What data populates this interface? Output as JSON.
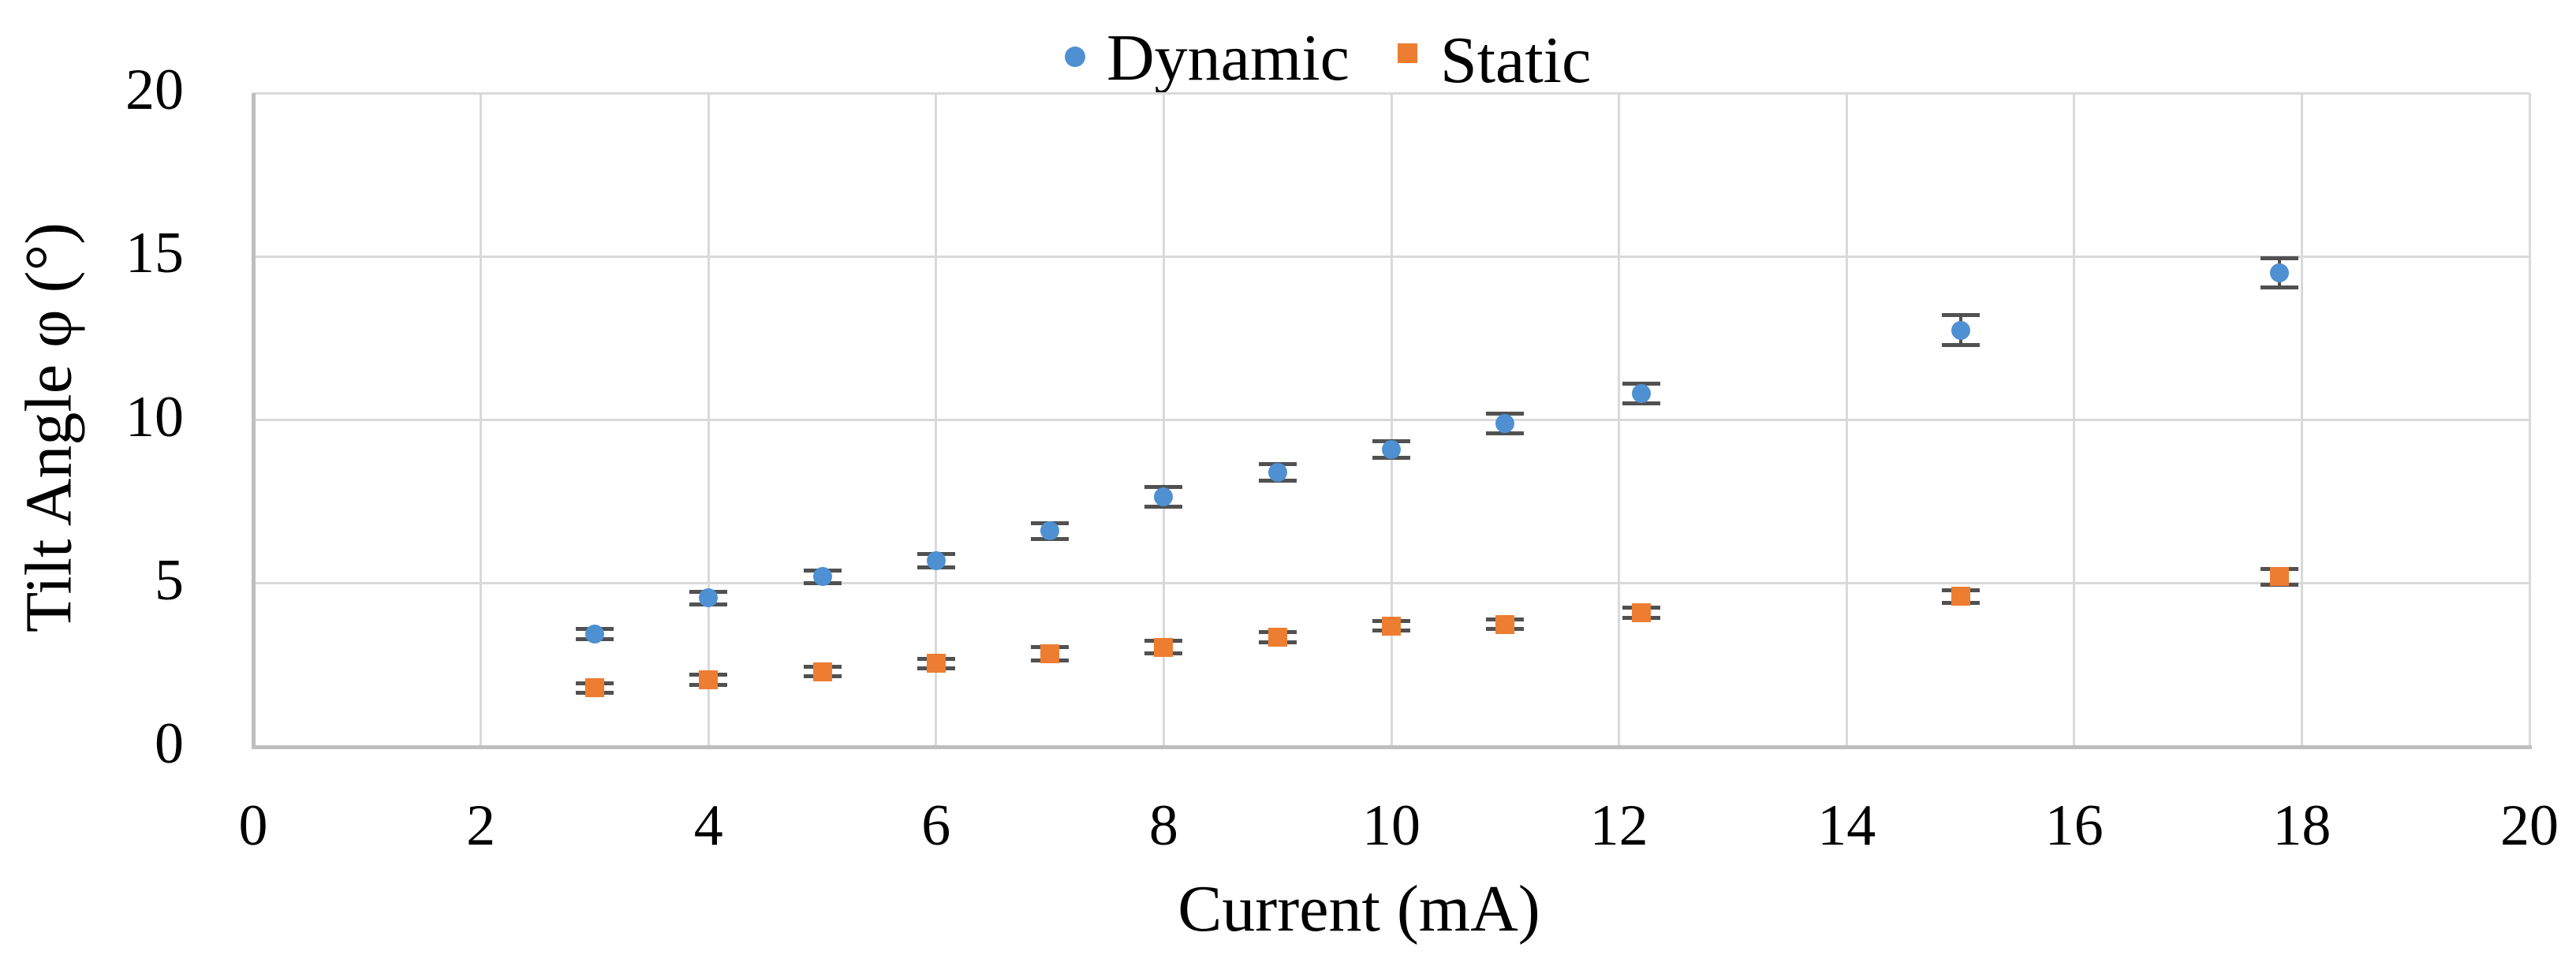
{
  "legend": [
    {
      "label": "Dynamic",
      "marker": "circle",
      "color": "#4E90D2"
    },
    {
      "label": "Static",
      "marker": "square",
      "color": "#ED7D31"
    }
  ],
  "axes": {
    "x": {
      "title": "Current (mA)",
      "min": 0,
      "max": 20
    },
    "y": {
      "title": "Tilt Angle φ (°)",
      "min": 0,
      "max": 20
    }
  },
  "colors": {
    "dynamic": "#4E90D2",
    "static": "#ED7D31",
    "error_bar": "#515151",
    "gridline": "#D9D9D9",
    "axis_line": "#BFBFBF",
    "text": "#000000"
  },
  "chart_data": {
    "type": "scatter",
    "title": "",
    "xlabel": "Current (mA)",
    "ylabel": "Tilt Angle φ (°)",
    "xlim": [
      0,
      20
    ],
    "ylim": [
      0,
      20
    ],
    "x_ticks": [
      0,
      2,
      4,
      6,
      8,
      10,
      12,
      14,
      16,
      18,
      20
    ],
    "y_ticks": [
      0,
      5,
      10,
      15,
      20
    ],
    "grid": true,
    "error_bars": true,
    "legend_position": "top-center",
    "series": [
      {
        "name": "Dynamic",
        "marker": "circle",
        "color": "#4E90D2",
        "points": [
          {
            "x": 3,
            "y": 3.45,
            "err": 0.15
          },
          {
            "x": 4,
            "y": 4.55,
            "err": 0.2
          },
          {
            "x": 5,
            "y": 5.2,
            "err": 0.2
          },
          {
            "x": 6,
            "y": 5.7,
            "err": 0.2
          },
          {
            "x": 7,
            "y": 6.6,
            "err": 0.25
          },
          {
            "x": 8,
            "y": 7.65,
            "err": 0.3
          },
          {
            "x": 9,
            "y": 8.4,
            "err": 0.25
          },
          {
            "x": 10,
            "y": 9.1,
            "err": 0.25
          },
          {
            "x": 11,
            "y": 9.9,
            "err": 0.3
          },
          {
            "x": 12.2,
            "y": 10.8,
            "err": 0.3
          },
          {
            "x": 15,
            "y": 12.75,
            "err": 0.45
          },
          {
            "x": 17.8,
            "y": 14.5,
            "err": 0.45
          }
        ]
      },
      {
        "name": "Static",
        "marker": "square",
        "color": "#ED7D31",
        "points": [
          {
            "x": 3,
            "y": 1.8,
            "err": 0.15
          },
          {
            "x": 4,
            "y": 2.05,
            "err": 0.15
          },
          {
            "x": 5,
            "y": 2.3,
            "err": 0.15
          },
          {
            "x": 6,
            "y": 2.55,
            "err": 0.15
          },
          {
            "x": 7,
            "y": 2.85,
            "err": 0.2
          },
          {
            "x": 8,
            "y": 3.05,
            "err": 0.2
          },
          {
            "x": 9,
            "y": 3.35,
            "err": 0.15
          },
          {
            "x": 10,
            "y": 3.7,
            "err": 0.15
          },
          {
            "x": 11,
            "y": 3.75,
            "err": 0.15
          },
          {
            "x": 12.2,
            "y": 4.1,
            "err": 0.15
          },
          {
            "x": 15,
            "y": 4.6,
            "err": 0.2
          },
          {
            "x": 17.8,
            "y": 5.2,
            "err": 0.25
          }
        ]
      }
    ]
  }
}
